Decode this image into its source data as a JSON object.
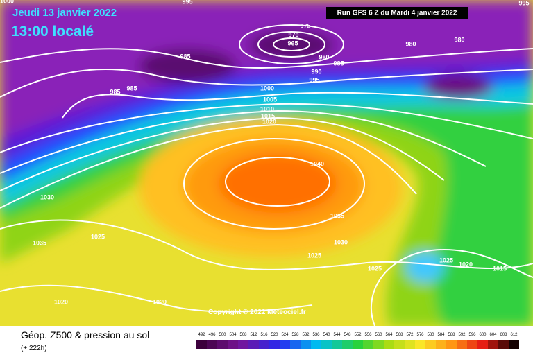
{
  "header": {
    "date": "Jeudi 13 janvier 2022",
    "time": "13:00 localé",
    "run": "Run GFS 6 Z du Mardi 4 janvier 2022"
  },
  "footer": {
    "title": "Géop. Z500 & pression au sol",
    "lead": "(+ 222h)",
    "copyright": "Copyright © 2022 Meteociel.fr"
  },
  "legend": {
    "levels": [
      492,
      496,
      500,
      504,
      508,
      512,
      516,
      520,
      524,
      528,
      532,
      536,
      540,
      544,
      548,
      552,
      556,
      560,
      564,
      568,
      572,
      576,
      580,
      584,
      588,
      592,
      596,
      600,
      604,
      608,
      612
    ]
  },
  "isobar_labels": [
    "1000",
    "995",
    "995",
    "975",
    "970",
    "965",
    "980",
    "985",
    "985",
    "980",
    "980",
    "990",
    "995",
    "985",
    "985",
    "1000",
    "1005",
    "1010",
    "1015",
    "1020",
    "1040",
    "1030",
    "1035",
    "1025",
    "1035",
    "1030",
    "1025",
    "1025",
    "1025",
    "1020",
    "1015",
    "1020",
    "1020"
  ]
}
